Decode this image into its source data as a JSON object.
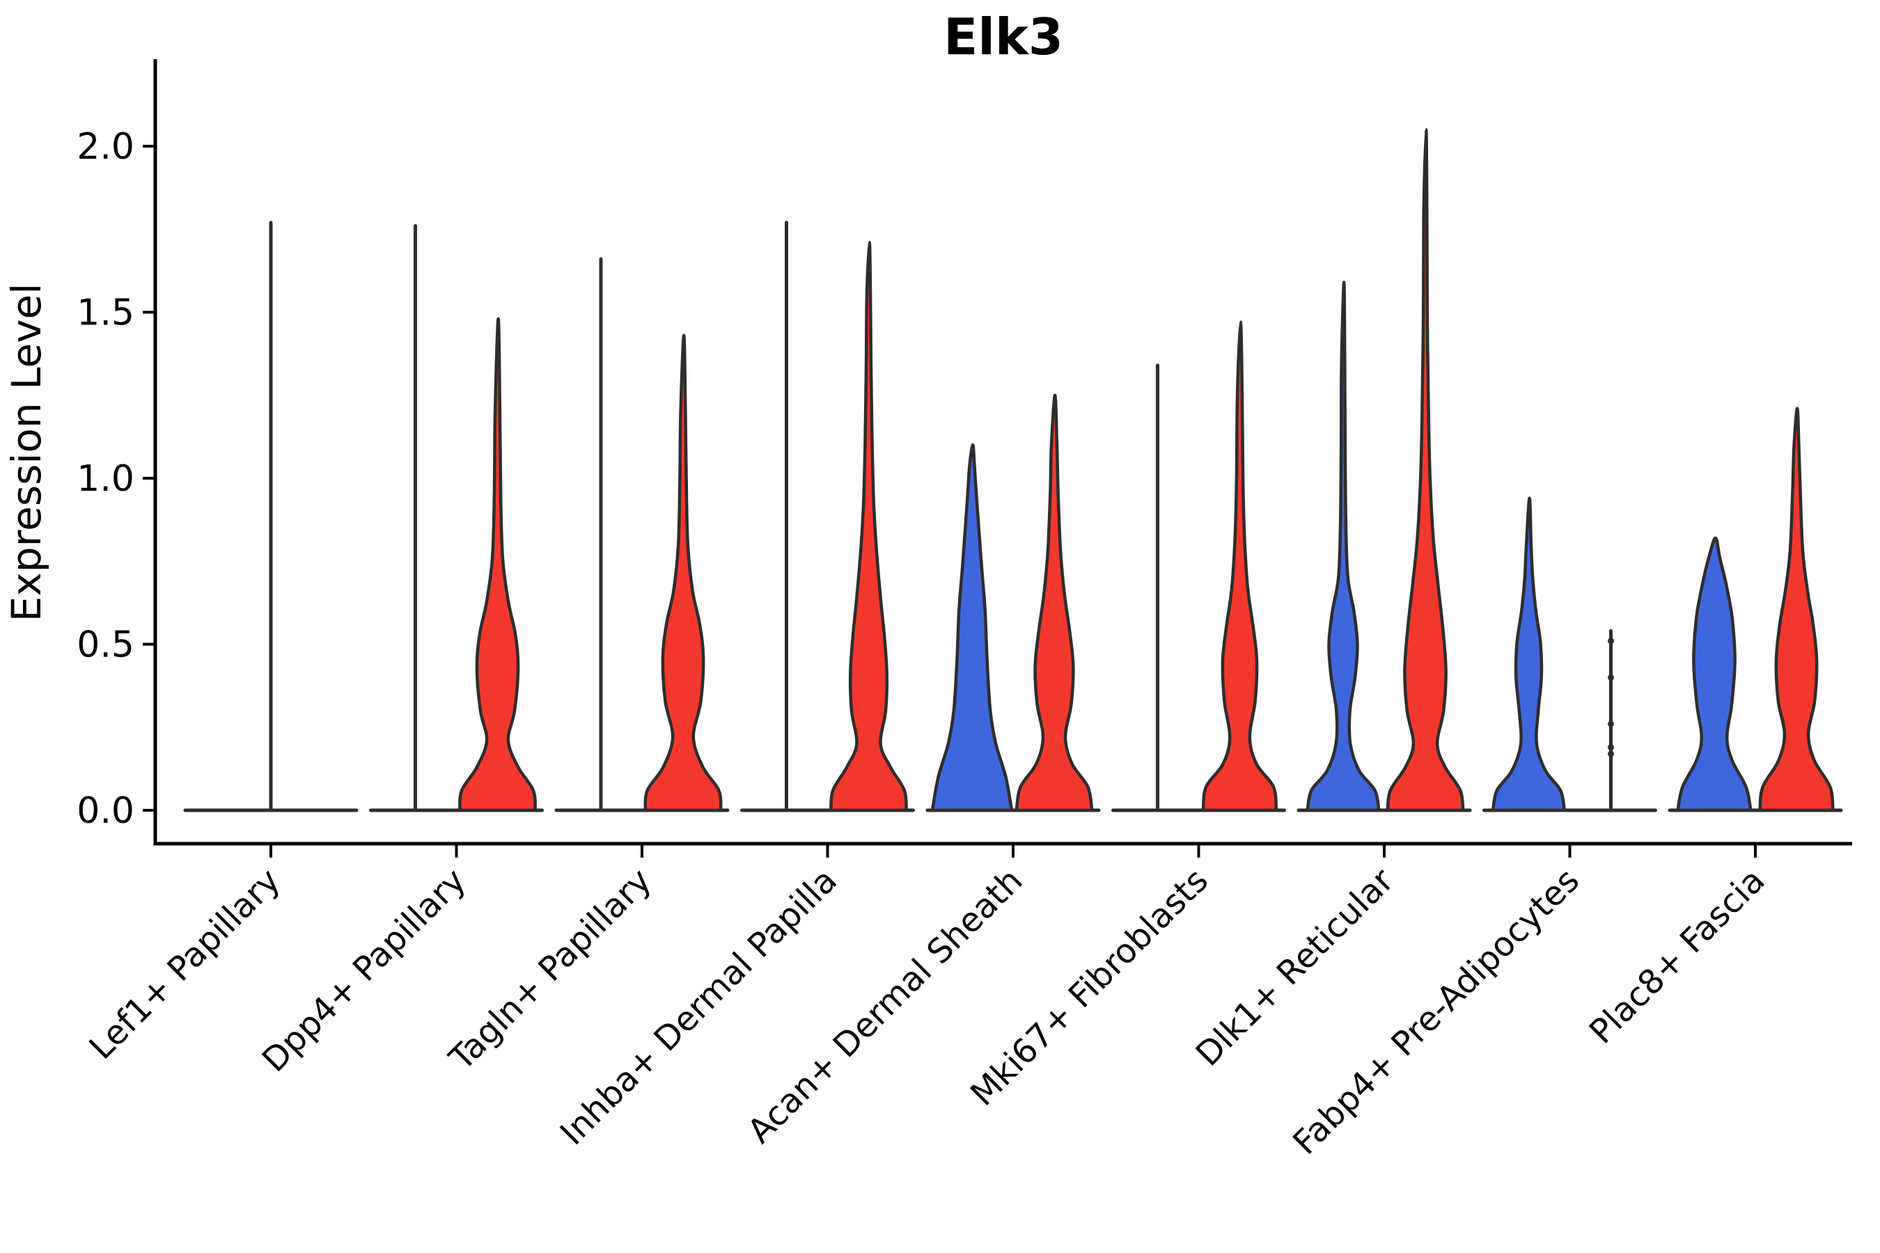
{
  "chart_data": {
    "type": "violin",
    "title": "Elk3",
    "ylabel": "Expression Level",
    "xlabel": "",
    "grid": false,
    "legend": "none",
    "ylim": [
      -0.1,
      2.26
    ],
    "yticks": [
      {
        "label": "0.0",
        "value": 0.0
      },
      {
        "label": "0.5",
        "value": 0.5
      },
      {
        "label": "1.0",
        "value": 1.0
      },
      {
        "label": "1.5",
        "value": 1.5
      },
      {
        "label": "2.0",
        "value": 2.0
      }
    ],
    "colors": {
      "blue": "#4066DD",
      "red": "#F5382D",
      "outline": "#2D2D2D",
      "axis": "#000000"
    },
    "categories": [
      "Lef1+ Papillary",
      "Dpp4+ Papillary",
      "Tagln+ Papillary",
      "Inhba+ Dermal Papilla",
      "Acan+ Dermal Sheath",
      "Mki67+ Fibroblasts",
      "Dlk1+ Reticular",
      "Fabp4+ Pre-Adipocytes",
      "Plac8+ Fascia"
    ],
    "groups": [
      {
        "label": "Lef1+ Papillary",
        "violins": [
          {
            "kind": "spike",
            "position": "center",
            "max": 1.77
          }
        ]
      },
      {
        "label": "Dpp4+ Papillary",
        "violins": [
          {
            "kind": "spike",
            "position": "left",
            "max": 1.76
          },
          {
            "kind": "density",
            "position": "right",
            "color": "red",
            "max": 1.48,
            "profile": [
              [
                0,
                0.95
              ],
              [
                0.06,
                0.9
              ],
              [
                0.13,
                0.52
              ],
              [
                0.21,
                0.27
              ],
              [
                0.3,
                0.43
              ],
              [
                0.43,
                0.52
              ],
              [
                0.53,
                0.45
              ],
              [
                0.63,
                0.27
              ],
              [
                0.76,
                0.13
              ],
              [
                0.95,
                0.08
              ],
              [
                1.2,
                0.06
              ],
              [
                1.48,
                0.02
              ]
            ]
          }
        ]
      },
      {
        "label": "Tagln+ Papillary",
        "violins": [
          {
            "kind": "spike",
            "position": "left",
            "max": 1.66
          },
          {
            "kind": "density",
            "position": "right",
            "color": "red",
            "max": 1.43,
            "profile": [
              [
                0,
                0.95
              ],
              [
                0.06,
                0.9
              ],
              [
                0.13,
                0.5
              ],
              [
                0.22,
                0.26
              ],
              [
                0.33,
                0.45
              ],
              [
                0.46,
                0.51
              ],
              [
                0.56,
                0.42
              ],
              [
                0.66,
                0.24
              ],
              [
                0.8,
                0.12
              ],
              [
                1.0,
                0.08
              ],
              [
                1.2,
                0.06
              ],
              [
                1.43,
                0.02
              ]
            ]
          }
        ]
      },
      {
        "label": "Inhba+ Dermal Papilla",
        "violins": [
          {
            "kind": "spike",
            "position": "left",
            "max": 1.77
          },
          {
            "kind": "density",
            "position": "right",
            "color": "red",
            "max": 1.71,
            "profile": [
              [
                0,
                0.95
              ],
              [
                0.06,
                0.9
              ],
              [
                0.13,
                0.55
              ],
              [
                0.2,
                0.3
              ],
              [
                0.3,
                0.43
              ],
              [
                0.41,
                0.46
              ],
              [
                0.52,
                0.4
              ],
              [
                0.64,
                0.3
              ],
              [
                0.78,
                0.2
              ],
              [
                0.92,
                0.13
              ],
              [
                1.1,
                0.09
              ],
              [
                1.35,
                0.06
              ],
              [
                1.55,
                0.045
              ],
              [
                1.71,
                0.02
              ]
            ]
          }
        ]
      },
      {
        "label": "Acan+ Dermal Sheath",
        "violins": [
          {
            "kind": "density",
            "position": "left",
            "color": "blue",
            "max": 1.1,
            "profile": [
              [
                0,
                1.0
              ],
              [
                0.1,
                0.85
              ],
              [
                0.2,
                0.6
              ],
              [
                0.3,
                0.46
              ],
              [
                0.45,
                0.38
              ],
              [
                0.6,
                0.33
              ],
              [
                0.72,
                0.25
              ],
              [
                0.85,
                0.17
              ],
              [
                0.95,
                0.11
              ],
              [
                1.04,
                0.06
              ],
              [
                1.1,
                0.02
              ]
            ]
          },
          {
            "kind": "density",
            "position": "right",
            "color": "red",
            "max": 1.25,
            "profile": [
              [
                0,
                0.95
              ],
              [
                0.07,
                0.85
              ],
              [
                0.14,
                0.45
              ],
              [
                0.22,
                0.28
              ],
              [
                0.32,
                0.43
              ],
              [
                0.43,
                0.48
              ],
              [
                0.53,
                0.4
              ],
              [
                0.65,
                0.26
              ],
              [
                0.78,
                0.16
              ],
              [
                0.95,
                0.1
              ],
              [
                1.1,
                0.07
              ],
              [
                1.25,
                0.02
              ]
            ]
          }
        ]
      },
      {
        "label": "Mki67+ Fibroblasts",
        "violins": [
          {
            "kind": "spike",
            "position": "left",
            "max": 1.34
          },
          {
            "kind": "density",
            "position": "right",
            "color": "red",
            "max": 1.47,
            "profile": [
              [
                0,
                0.92
              ],
              [
                0.07,
                0.85
              ],
              [
                0.14,
                0.42
              ],
              [
                0.22,
                0.25
              ],
              [
                0.33,
                0.39
              ],
              [
                0.45,
                0.43
              ],
              [
                0.55,
                0.34
              ],
              [
                0.67,
                0.2
              ],
              [
                0.82,
                0.12
              ],
              [
                1.0,
                0.08
              ],
              [
                1.25,
                0.06
              ],
              [
                1.47,
                0.02
              ]
            ]
          }
        ]
      },
      {
        "label": "Dlk1+ Reticular",
        "violins": [
          {
            "kind": "density",
            "position": "left",
            "color": "blue",
            "max": 1.59,
            "profile": [
              [
                0,
                0.9
              ],
              [
                0.06,
                0.8
              ],
              [
                0.12,
                0.4
              ],
              [
                0.2,
                0.18
              ],
              [
                0.3,
                0.17
              ],
              [
                0.4,
                0.3
              ],
              [
                0.5,
                0.36
              ],
              [
                0.6,
                0.27
              ],
              [
                0.7,
                0.12
              ],
              [
                0.85,
                0.07
              ],
              [
                1.1,
                0.05
              ],
              [
                1.35,
                0.04
              ],
              [
                1.59,
                0.02
              ]
            ]
          },
          {
            "kind": "density",
            "position": "right",
            "color": "red",
            "max": 2.05,
            "profile": [
              [
                0,
                0.95
              ],
              [
                0.06,
                0.88
              ],
              [
                0.13,
                0.5
              ],
              [
                0.2,
                0.3
              ],
              [
                0.3,
                0.46
              ],
              [
                0.42,
                0.52
              ],
              [
                0.55,
                0.44
              ],
              [
                0.68,
                0.32
              ],
              [
                0.82,
                0.2
              ],
              [
                1.0,
                0.12
              ],
              [
                1.2,
                0.08
              ],
              [
                1.5,
                0.05
              ],
              [
                1.8,
                0.04
              ],
              [
                2.05,
                0.02
              ]
            ]
          }
        ]
      },
      {
        "label": "Fabp4+ Pre-Adipocytes",
        "violins": [
          {
            "kind": "density",
            "position": "left",
            "color": "blue",
            "max": 0.94,
            "profile": [
              [
                0,
                0.9
              ],
              [
                0.06,
                0.8
              ],
              [
                0.12,
                0.42
              ],
              [
                0.2,
                0.2
              ],
              [
                0.3,
                0.24
              ],
              [
                0.4,
                0.32
              ],
              [
                0.5,
                0.3
              ],
              [
                0.6,
                0.18
              ],
              [
                0.7,
                0.1
              ],
              [
                0.8,
                0.06
              ],
              [
                0.94,
                0.02
              ]
            ]
          },
          {
            "kind": "points",
            "position": "right",
            "max": 0.54,
            "points": [
              0.17,
              0.19,
              0.26,
              0.4,
              0.51
            ]
          }
        ]
      },
      {
        "label": "Plac8+ Fascia",
        "violins": [
          {
            "kind": "density",
            "position": "left",
            "color": "blue",
            "max": 0.82,
            "profile": [
              [
                0,
                0.92
              ],
              [
                0.07,
                0.8
              ],
              [
                0.15,
                0.45
              ],
              [
                0.22,
                0.32
              ],
              [
                0.32,
                0.44
              ],
              [
                0.45,
                0.52
              ],
              [
                0.58,
                0.45
              ],
              [
                0.68,
                0.3
              ],
              [
                0.76,
                0.14
              ],
              [
                0.82,
                0.03
              ]
            ]
          },
          {
            "kind": "density",
            "position": "right",
            "color": "red",
            "max": 1.21,
            "profile": [
              [
                0,
                0.92
              ],
              [
                0.07,
                0.85
              ],
              [
                0.15,
                0.45
              ],
              [
                0.23,
                0.3
              ],
              [
                0.33,
                0.46
              ],
              [
                0.45,
                0.51
              ],
              [
                0.56,
                0.42
              ],
              [
                0.66,
                0.28
              ],
              [
                0.78,
                0.16
              ],
              [
                0.95,
                0.1
              ],
              [
                1.1,
                0.06
              ],
              [
                1.21,
                0.02
              ]
            ]
          }
        ]
      }
    ]
  }
}
